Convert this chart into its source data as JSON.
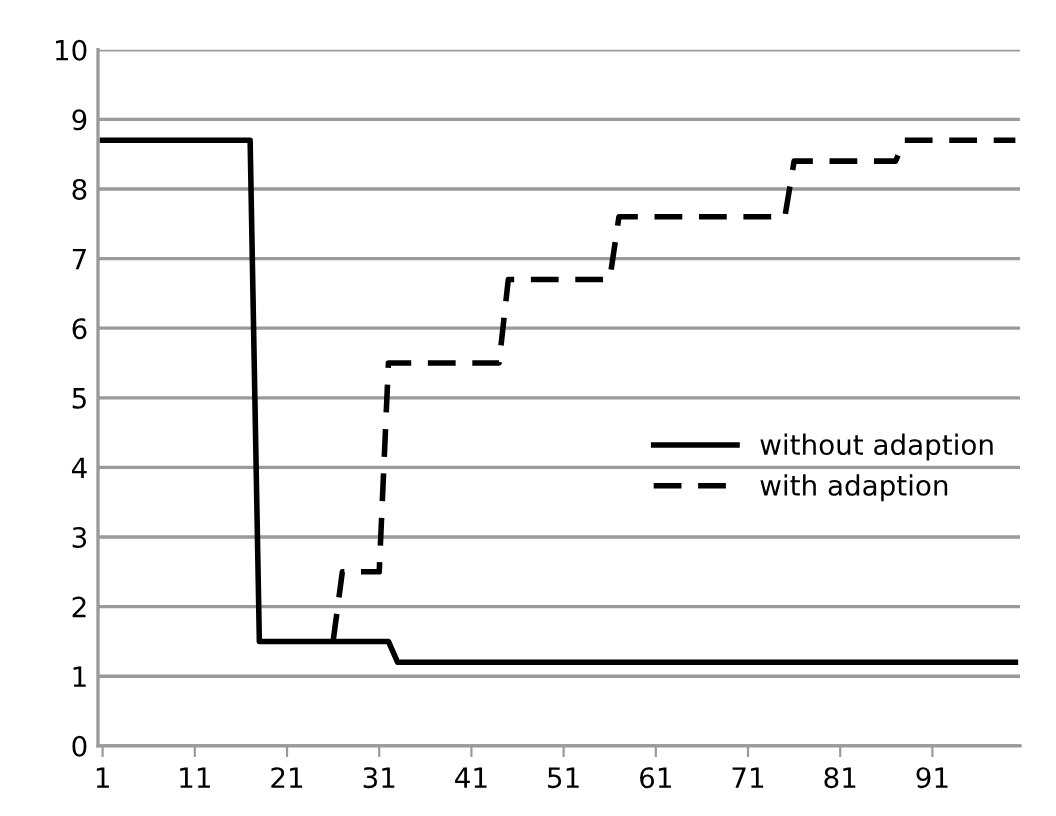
{
  "chart_data": {
    "type": "line",
    "series": [
      {
        "name": "without adaption",
        "color": "#000000",
        "line_style": "solid",
        "x": [
          1,
          17,
          18,
          32,
          33,
          100
        ],
        "values": [
          8.7,
          8.7,
          1.5,
          1.5,
          1.2,
          1.2
        ]
      },
      {
        "name": "with adaption",
        "color": "#000000",
        "line_style": "dashed",
        "x": [
          26,
          27,
          31,
          32,
          44,
          45,
          56,
          57,
          75,
          76,
          87,
          88,
          100
        ],
        "values": [
          1.5,
          2.5,
          2.5,
          5.5,
          5.5,
          6.7,
          6.7,
          7.6,
          7.6,
          8.4,
          8.4,
          8.7,
          8.7
        ]
      }
    ],
    "xlim": [
      0.5,
      100.5
    ],
    "xticks": [
      1,
      11,
      21,
      31,
      41,
      51,
      61,
      71,
      81,
      91
    ],
    "ylim": [
      0,
      10
    ],
    "yticks": [
      0,
      1,
      2,
      3,
      4,
      5,
      6,
      7,
      8,
      9,
      10
    ],
    "grid": "y",
    "legend": "right",
    "marker": "none"
  }
}
